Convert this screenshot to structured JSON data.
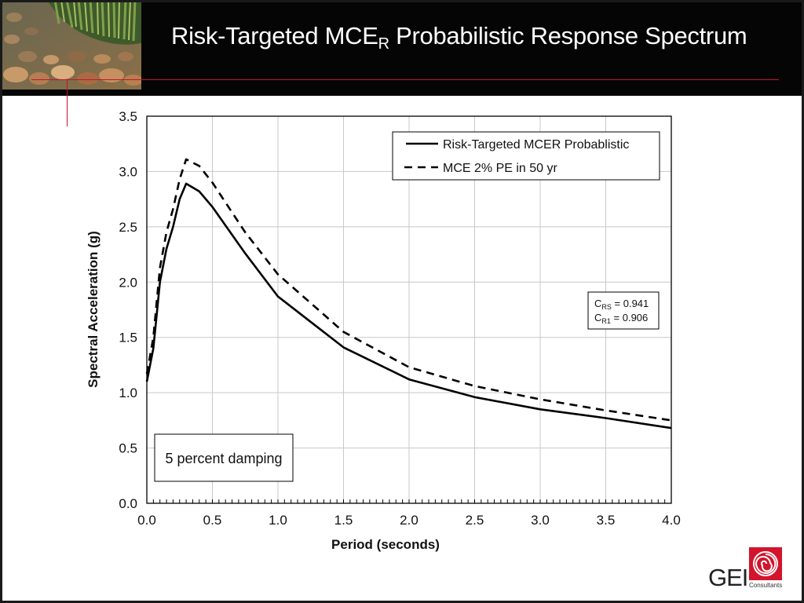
{
  "slide": {
    "title_main": "Risk-Targeted MCE",
    "title_sub": "R",
    "title_rest": " Probabilistic Response Spectrum"
  },
  "chart_data": {
    "type": "line",
    "title": "",
    "xlabel": "Period (seconds)",
    "ylabel": "Spectral Acceleration (g)",
    "xlim": [
      0,
      4.0
    ],
    "ylim": [
      0,
      3.5
    ],
    "x_ticks": [
      "0.0",
      "0.5",
      "1.0",
      "1.5",
      "2.0",
      "2.5",
      "3.0",
      "3.5",
      "4.0"
    ],
    "y_ticks": [
      "0.0",
      "0.5",
      "1.0",
      "1.5",
      "2.0",
      "2.5",
      "3.0",
      "3.5"
    ],
    "x_tick_values": [
      0,
      0.5,
      1.0,
      1.5,
      2.0,
      2.5,
      3.0,
      3.5,
      4.0
    ],
    "y_tick_values": [
      0,
      0.5,
      1.0,
      1.5,
      2.0,
      2.5,
      3.0,
      3.5
    ],
    "x_minor_step": 0.05,
    "grid": true,
    "legend_placement": "top-right",
    "series": [
      {
        "name": "Risk-Targeted MCER Probablistic",
        "style": "solid",
        "x": [
          0.0,
          0.05,
          0.1,
          0.15,
          0.2,
          0.25,
          0.3,
          0.4,
          0.5,
          0.75,
          1.0,
          1.5,
          2.0,
          2.5,
          3.0,
          3.5,
          4.0
        ],
        "y": [
          1.1,
          1.4,
          2.0,
          2.3,
          2.5,
          2.75,
          2.89,
          2.82,
          2.68,
          2.26,
          1.87,
          1.41,
          1.12,
          0.96,
          0.85,
          0.77,
          0.68
        ]
      },
      {
        "name": "MCE 2% PE in 50 yr",
        "style": "dashed",
        "x": [
          0.0,
          0.05,
          0.1,
          0.15,
          0.2,
          0.25,
          0.3,
          0.4,
          0.5,
          0.75,
          1.0,
          1.5,
          2.0,
          2.5,
          3.0,
          3.5,
          4.0
        ],
        "y": [
          1.17,
          1.5,
          2.13,
          2.45,
          2.66,
          2.93,
          3.11,
          3.05,
          2.9,
          2.45,
          2.07,
          1.55,
          1.23,
          1.06,
          0.94,
          0.84,
          0.75
        ]
      }
    ],
    "annotations": {
      "damping": "5 percent damping",
      "crs_symbol": "C",
      "crs_sub": "RS",
      "crs_value": " = 0.941",
      "cr1_symbol": "C",
      "cr1_sub": "R1",
      "cr1_value": " = 0.906"
    }
  },
  "logo": {
    "text": "GEI",
    "subtext": "Consultants",
    "color": "#d2142c"
  },
  "colors": {
    "header": "#050505",
    "accent": "#c8102e",
    "series": "#000000"
  }
}
